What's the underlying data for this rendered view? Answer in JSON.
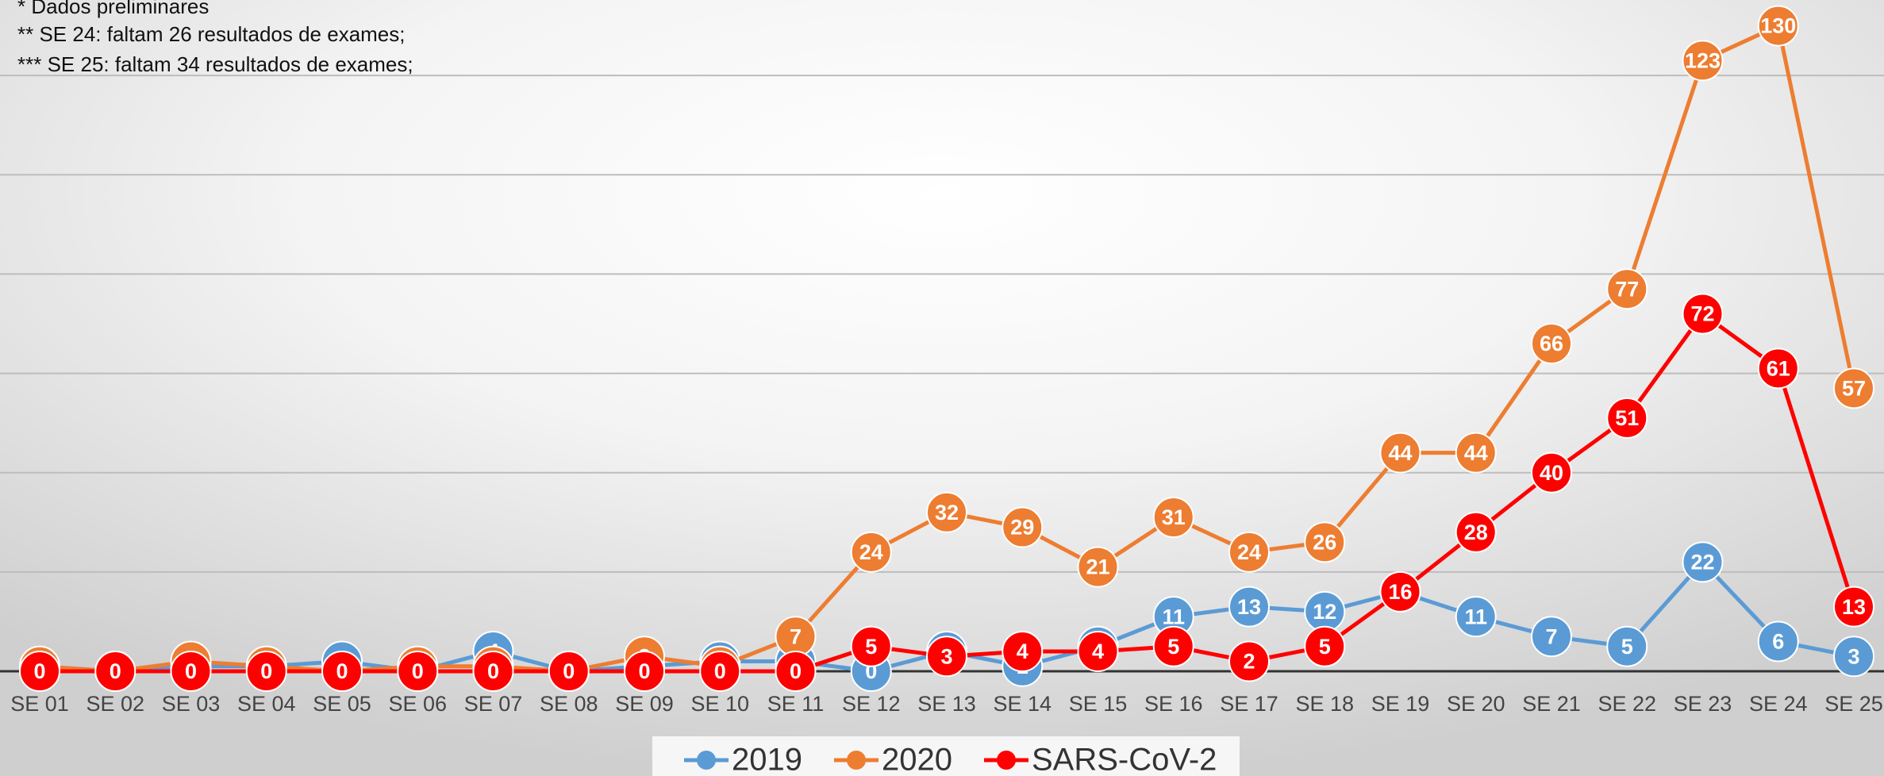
{
  "chart_data": {
    "type": "line",
    "notes": [
      "* Dados preliminares",
      "** SE 24: faltam 26 resultados de exames;",
      "*** SE 25: faltam 34 resultados de exames;"
    ],
    "categories": [
      "SE 01",
      "SE 02",
      "SE 03",
      "SE 04",
      "SE 05",
      "SE 06",
      "SE 07",
      "SE 08",
      "SE 09",
      "SE 10",
      "SE 11",
      "SE 12",
      "SE 13",
      "SE 14",
      "SE 15",
      "SE 16",
      "SE 17",
      "SE 18",
      "SE 19",
      "SE 20",
      "SE 21",
      "SE 22",
      "SE 23",
      "SE 24",
      "SE 25"
    ],
    "series": [
      {
        "name": "2019",
        "color": "#5b9bd5",
        "values": [
          1,
          0,
          1,
          1,
          2,
          0,
          4,
          0,
          1,
          2,
          2,
          0,
          4,
          1,
          5,
          11,
          13,
          12,
          16,
          11,
          7,
          5,
          22,
          6,
          3
        ]
      },
      {
        "name": "2020",
        "color": "#ed7d31",
        "values": [
          1,
          0,
          2,
          1,
          0,
          1,
          1,
          0,
          3,
          1,
          7,
          24,
          32,
          29,
          21,
          31,
          24,
          26,
          44,
          44,
          66,
          77,
          123,
          130,
          57
        ]
      },
      {
        "name": "SARS-CoV-2",
        "color": "#ff0000",
        "values": [
          0,
          0,
          0,
          0,
          0,
          0,
          0,
          0,
          0,
          0,
          0,
          5,
          3,
          4,
          4,
          5,
          2,
          5,
          16,
          28,
          40,
          51,
          72,
          61,
          13
        ]
      }
    ],
    "ylim": [
      0,
      140
    ],
    "yticks": [
      0,
      20,
      40,
      60,
      80,
      100,
      120,
      140
    ],
    "grid": true
  }
}
